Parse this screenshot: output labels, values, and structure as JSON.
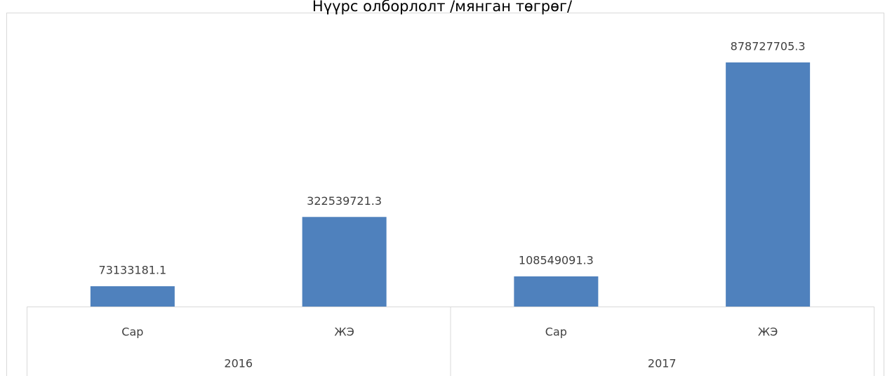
{
  "chart_data": {
    "type": "bar",
    "title": "Нүүрс олборлолт /мянган төгрөг/",
    "categories": [
      "Сар",
      "ЖЭ",
      "Сар",
      "ЖЭ"
    ],
    "groups": [
      {
        "name": "2016",
        "span": 2
      },
      {
        "name": "2017",
        "span": 2
      }
    ],
    "values": [
      73133181.1,
      322539721.3,
      108549091.3,
      878727705.3
    ],
    "color": "#4f81bd"
  }
}
